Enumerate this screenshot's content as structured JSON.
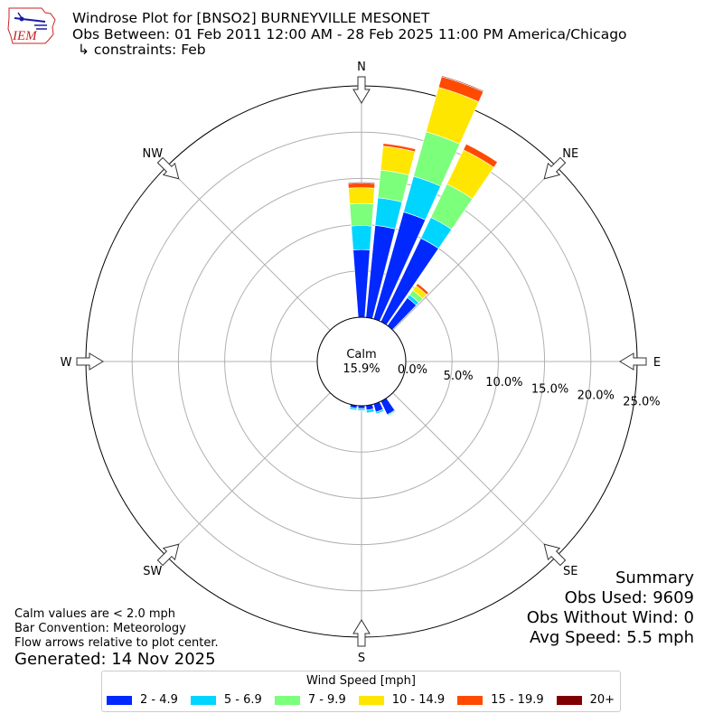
{
  "header": {
    "logo_text": "IEM",
    "title_line1": "Windrose Plot for [BNSO2] BURNEYVILLE MESONET",
    "title_line2": "Obs Between: 01 Feb 2011 12:00 AM - 28 Feb 2025 11:00 PM America/Chicago",
    "title_line3": "↳ constraints: Feb"
  },
  "chart_data": {
    "type": "windrose",
    "radial_max": 25.0,
    "radial_ticks": [
      "0.0%",
      "5.0%",
      "10.0%",
      "15.0%",
      "20.0%",
      "25.0%"
    ],
    "radial_tick_values": [
      0,
      5,
      10,
      15,
      20,
      25
    ],
    "directions": [
      "N",
      "NE",
      "E",
      "SE",
      "S",
      "SW",
      "W",
      "NW"
    ],
    "calm_label": "Calm",
    "calm_value": "15.9%",
    "calm_percent": 15.9,
    "bins": [
      "2 - 4.9",
      "5 - 6.9",
      "7 - 9.9",
      "10 - 14.9",
      "15 - 19.9",
      "20+"
    ],
    "colors": [
      "#0028ff",
      "#00d5ff",
      "#7cff7a",
      "#ffe600",
      "#ff4a00",
      "#800000"
    ],
    "sectors": [
      {
        "dir_deg": 0,
        "cum": [
          7.3,
          9.9,
          12.3,
          14.0,
          14.5,
          14.6
        ]
      },
      {
        "dir_deg": 10,
        "cum": [
          10.0,
          13.0,
          16.0,
          18.6,
          18.9,
          18.9
        ]
      },
      {
        "dir_deg": 20,
        "cum": [
          12.0,
          16.0,
          21.0,
          26.0,
          27.2,
          27.3
        ]
      },
      {
        "dir_deg": 30,
        "cum": [
          10.0,
          12.5,
          16.5,
          20.6,
          21.3,
          21.3
        ]
      },
      {
        "dir_deg": 40,
        "cum": [
          3.7,
          4.1,
          4.7,
          5.3,
          5.6,
          5.6
        ]
      },
      {
        "dir_deg": 150,
        "cum": [
          1.6,
          1.7,
          1.8,
          1.8,
          1.8,
          1.8
        ]
      },
      {
        "dir_deg": 160,
        "cum": [
          0.9,
          1.1,
          1.1,
          1.1,
          1.1,
          1.1
        ]
      },
      {
        "dir_deg": 170,
        "cum": [
          0.5,
          0.8,
          0.8,
          0.8,
          0.8,
          0.8
        ]
      },
      {
        "dir_deg": 180,
        "cum": [
          0.3,
          0.5,
          0.5,
          0.5,
          0.5,
          0.5
        ]
      },
      {
        "dir_deg": 190,
        "cum": [
          0.3,
          0.5,
          0.5,
          0.5,
          0.5,
          0.5
        ]
      }
    ],
    "legend_title": "Wind Speed [mph]",
    "grid": true
  },
  "summary": {
    "title": "Summary",
    "obs_used": "Obs Used: 9609",
    "obs_without_wind": "Obs Without Wind: 0",
    "avg_speed": "Avg Speed: 5.5 mph"
  },
  "notes": {
    "calm": "Calm values are < 2.0 mph",
    "convention": "Bar Convention: Meteorology",
    "flow": "Flow arrows relative to plot center.",
    "generated": "Generated: 14 Nov 2025"
  }
}
